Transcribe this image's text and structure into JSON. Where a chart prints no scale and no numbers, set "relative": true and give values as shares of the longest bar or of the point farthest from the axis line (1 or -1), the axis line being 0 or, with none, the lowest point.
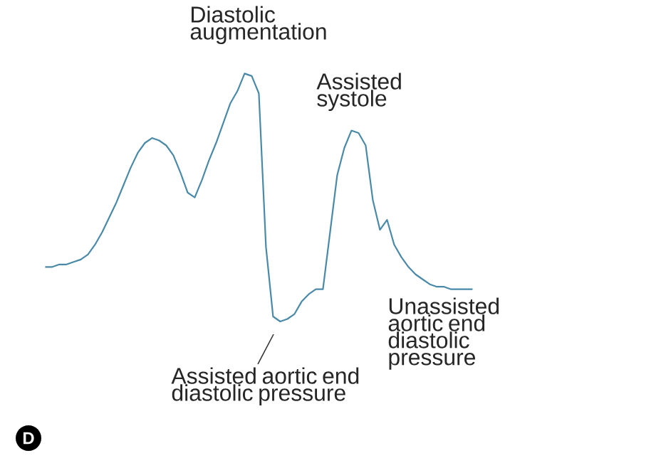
{
  "chart_data": {
    "type": "line",
    "relative": true,
    "color": "#4a8aa8",
    "marker": "none",
    "line_style": "solid",
    "categories": [
      null,
      null,
      null,
      null,
      null,
      null,
      null,
      null,
      null,
      null,
      null,
      null,
      null,
      null,
      null,
      null,
      null,
      null,
      null,
      null,
      null,
      null,
      null,
      null,
      null,
      null,
      null,
      null,
      null,
      null,
      null,
      null,
      null,
      null,
      null,
      null,
      null,
      null,
      null,
      null,
      null,
      null,
      null,
      null,
      null,
      null,
      null,
      null,
      null,
      null,
      null,
      null,
      null,
      null,
      null,
      null,
      null,
      null,
      null,
      null,
      null
    ],
    "values": [
      0.22,
      0.22,
      0.23,
      0.23,
      0.24,
      0.25,
      0.27,
      0.31,
      0.36,
      0.42,
      0.48,
      0.55,
      0.62,
      0.68,
      0.72,
      0.74,
      0.73,
      0.71,
      0.67,
      0.6,
      0.52,
      0.5,
      0.57,
      0.65,
      0.72,
      0.8,
      0.88,
      0.93,
      1,
      0.99,
      0.92,
      0.3,
      0.02,
      0,
      0.01,
      0.03,
      0.08,
      0.11,
      0.13,
      0.13,
      0.36,
      0.59,
      0.7,
      0.77,
      0.76,
      0.71,
      0.49,
      0.37,
      0.41,
      0.31,
      0.26,
      0.22,
      0.19,
      0.17,
      0.15,
      0.14,
      0.14,
      0.13,
      0.13,
      0.13,
      0.13
    ],
    "annotations": [
      "Diastolic augmentation",
      "Assisted systole",
      "Unassisted aortic end diastolic pressure",
      "Assisted aortic end diastolic pressure",
      "D"
    ]
  }
}
